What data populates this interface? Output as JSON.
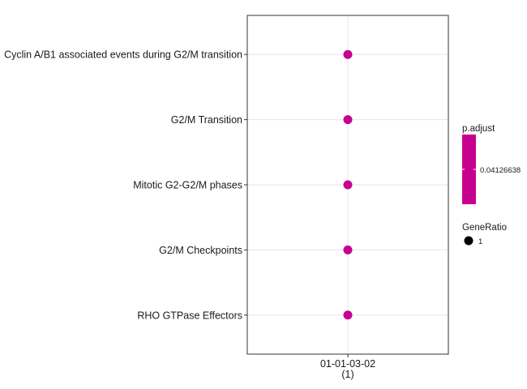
{
  "chart_data": {
    "type": "scatter",
    "title": "",
    "xlabel": "",
    "ylabel": "",
    "categories_x": [
      {
        "label": "01-01-03-02",
        "sub": "(1)"
      }
    ],
    "categories_y": [
      "Cyclin A/B1 associated events during G2/M transition",
      "G2/M Transition",
      "Mitotic G2-G2/M phases",
      "G2/M Checkpoints",
      "RHO GTPase Effectors"
    ],
    "points": [
      {
        "x": "01-01-03-02",
        "y": "Cyclin A/B1 associated events during G2/M transition",
        "gene_ratio": 1,
        "p_adjust": 0.04126638
      },
      {
        "x": "01-01-03-02",
        "y": "G2/M Transition",
        "gene_ratio": 1,
        "p_adjust": 0.04126638
      },
      {
        "x": "01-01-03-02",
        "y": "Mitotic G2-G2/M phases",
        "gene_ratio": 1,
        "p_adjust": 0.04126638
      },
      {
        "x": "01-01-03-02",
        "y": "G2/M Checkpoints",
        "gene_ratio": 1,
        "p_adjust": 0.04126638
      },
      {
        "x": "01-01-03-02",
        "y": "RHO GTPase Effectors",
        "gene_ratio": 1,
        "p_adjust": 0.04126638
      }
    ],
    "grid": true,
    "point_color": "#c8008f",
    "legend": {
      "placement": "right",
      "color": {
        "title": "p.adjust",
        "label": "0.04126638",
        "color": "#c8008f"
      },
      "size": {
        "title": "GeneRatio",
        "label": "1"
      }
    }
  }
}
